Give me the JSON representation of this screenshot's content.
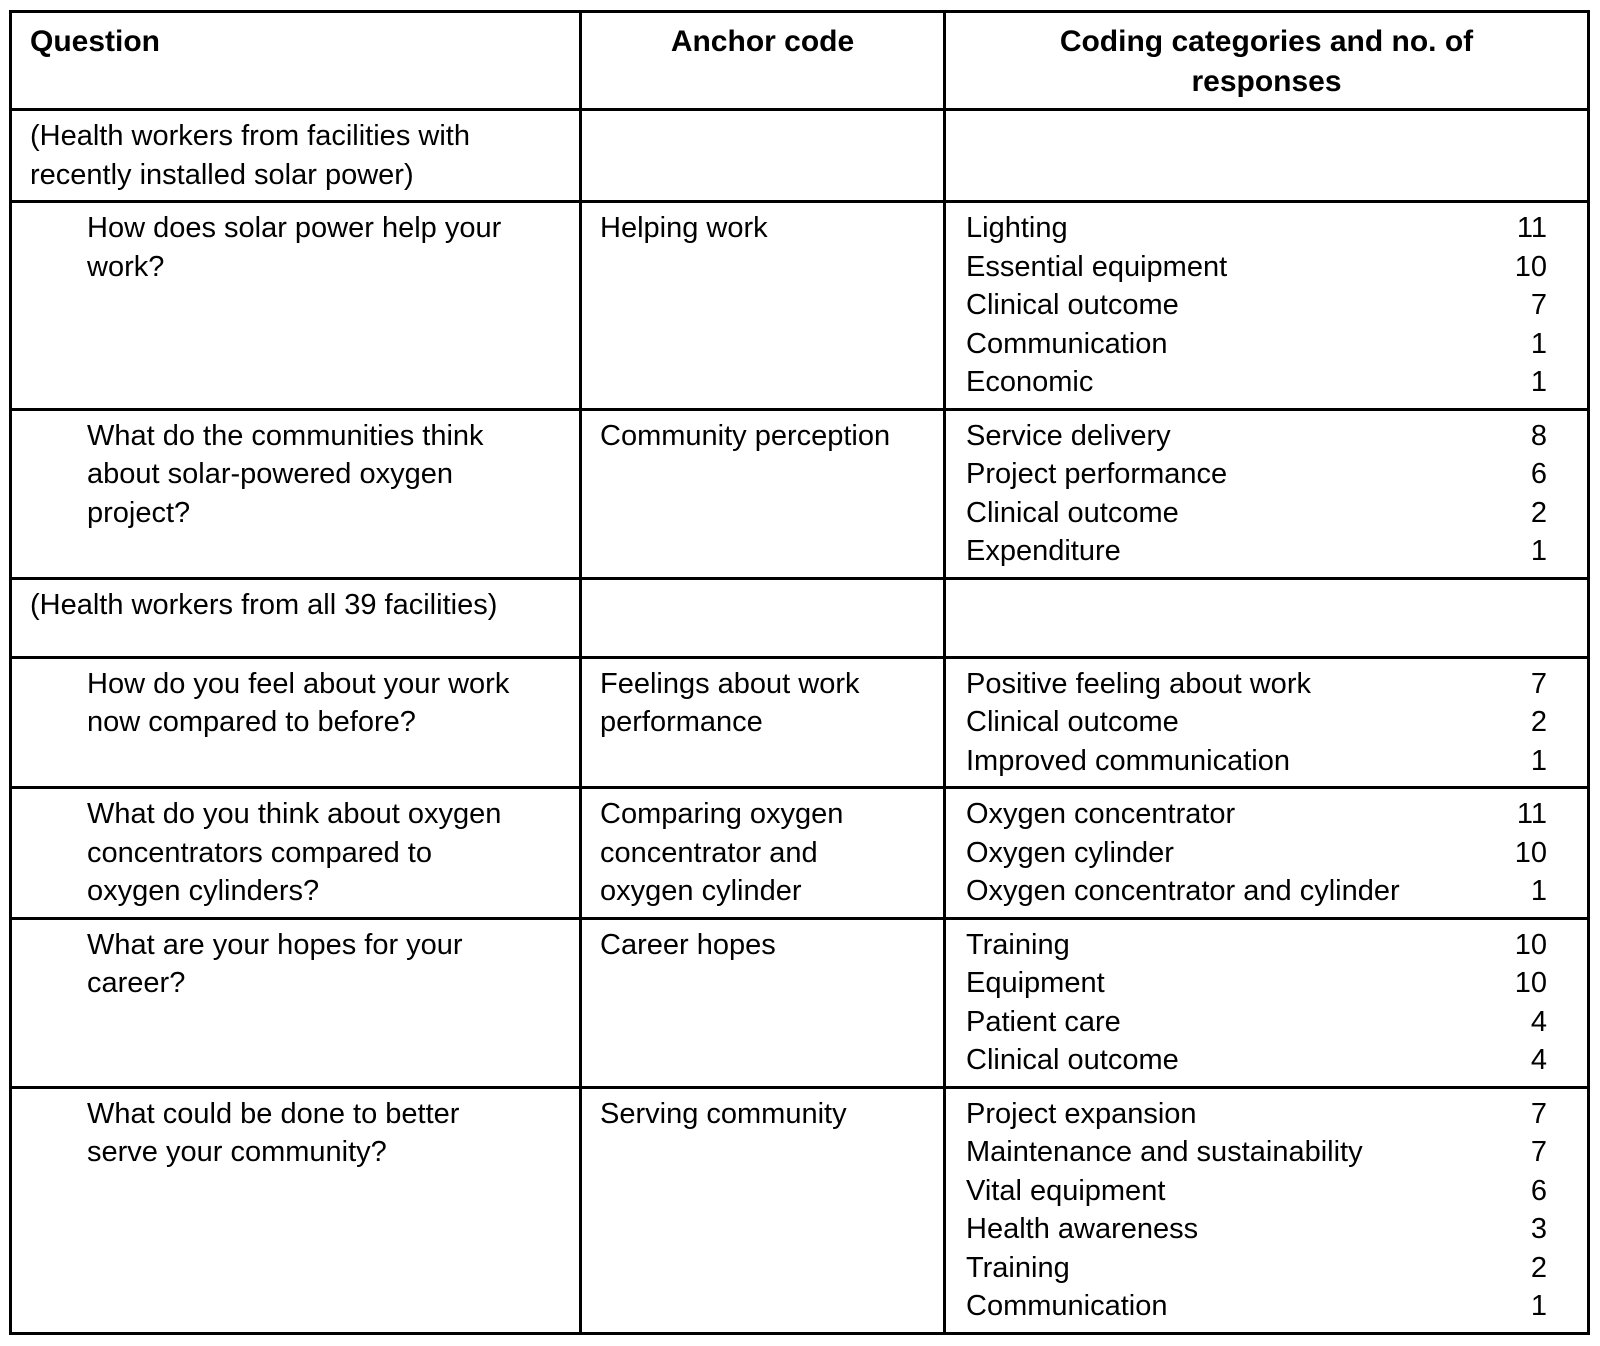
{
  "table": {
    "columns": [
      "Question",
      "Anchor code",
      "Coding categories and no. of responses"
    ],
    "rows": [
      {
        "type": "group",
        "question": "(Health workers from facilities with recently installed solar power)",
        "anchor": "",
        "categories": []
      },
      {
        "type": "question",
        "question": "How does solar power help your work?",
        "anchor": "Helping work",
        "categories": [
          {
            "label": "Lighting",
            "count": "11"
          },
          {
            "label": "Essential equipment",
            "count": "10"
          },
          {
            "label": "Clinical outcome",
            "count": "7"
          },
          {
            "label": "Communication",
            "count": "1"
          },
          {
            "label": "Economic",
            "count": "1"
          }
        ]
      },
      {
        "type": "question",
        "question": "What do the communities think about solar-powered oxygen project?",
        "anchor": "Community perception",
        "categories": [
          {
            "label": "Service delivery",
            "count": "8"
          },
          {
            "label": "Project performance",
            "count": "6"
          },
          {
            "label": "Clinical outcome",
            "count": "2"
          },
          {
            "label": "Expenditure",
            "count": "1"
          }
        ]
      },
      {
        "type": "group",
        "question": "(Health workers from all 39 facilities)",
        "anchor": "",
        "categories": []
      },
      {
        "type": "question",
        "question": "How do you feel about your work now compared to before?",
        "anchor": "Feelings about work performance",
        "categories": [
          {
            "label": "Positive feeling about work",
            "count": "7"
          },
          {
            "label": "Clinical outcome",
            "count": "2"
          },
          {
            "label": "Improved communication",
            "count": "1"
          }
        ]
      },
      {
        "type": "question",
        "question": "What do you think about oxygen concentrators compared to oxygen cylinders?",
        "anchor": "Comparing oxygen concentrator and oxygen cylinder",
        "categories": [
          {
            "label": "Oxygen concentrator",
            "count": "11"
          },
          {
            "label": "Oxygen cylinder",
            "count": "10"
          },
          {
            "label": "Oxygen concentrator and cylinder",
            "count": "1"
          }
        ]
      },
      {
        "type": "question",
        "question": "What are your hopes for your career?",
        "anchor": "Career hopes",
        "categories": [
          {
            "label": "Training",
            "count": "10"
          },
          {
            "label": "Equipment",
            "count": "10"
          },
          {
            "label": "Patient care",
            "count": "4"
          },
          {
            "label": "Clinical outcome",
            "count": "4"
          }
        ]
      },
      {
        "type": "question",
        "question": "What could be done to better serve your community?",
        "anchor": "Serving community",
        "categories": [
          {
            "label": "Project expansion",
            "count": "7"
          },
          {
            "label": "Maintenance and sustainability",
            "count": "7"
          },
          {
            "label": "Vital equipment",
            "count": "6"
          },
          {
            "label": "Health awareness",
            "count": "3"
          },
          {
            "label": "Training",
            "count": "2"
          },
          {
            "label": "Communication",
            "count": "1"
          }
        ]
      }
    ]
  }
}
